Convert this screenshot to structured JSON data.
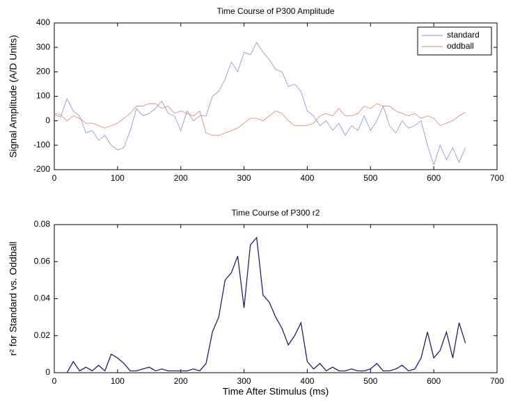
{
  "chart_data": [
    {
      "type": "line",
      "title": "Time Course of P300 Amplitude",
      "y_label": "Signal Amplitude (A/D Units)",
      "x": [
        0,
        10,
        20,
        30,
        40,
        50,
        60,
        70,
        80,
        90,
        100,
        110,
        120,
        130,
        140,
        150,
        160,
        170,
        180,
        190,
        200,
        210,
        220,
        230,
        240,
        250,
        260,
        270,
        280,
        290,
        300,
        310,
        320,
        330,
        340,
        350,
        360,
        370,
        380,
        390,
        400,
        410,
        420,
        430,
        440,
        450,
        460,
        470,
        480,
        490,
        500,
        510,
        520,
        530,
        540,
        550,
        560,
        570,
        580,
        590,
        600,
        610,
        620,
        630,
        640,
        650
      ],
      "series": [
        {
          "name": "standard",
          "color": "#8a8fd0",
          "values": [
            25,
            15,
            90,
            40,
            20,
            -50,
            -40,
            -80,
            -60,
            -100,
            -120,
            -110,
            -40,
            50,
            20,
            30,
            50,
            80,
            30,
            20,
            -40,
            40,
            0,
            20,
            20,
            100,
            120,
            170,
            240,
            200,
            280,
            270,
            320,
            280,
            250,
            210,
            200,
            140,
            150,
            120,
            40,
            20,
            -20,
            0,
            -40,
            -10,
            -60,
            -20,
            -40,
            20,
            -40,
            0,
            60,
            -20,
            -50,
            0,
            -30,
            -20,
            0,
            -100,
            -180,
            -100,
            -160,
            -110,
            -170,
            -110
          ]
        },
        {
          "name": "oddball",
          "color": "#e0826e",
          "values": [
            30,
            25,
            0,
            20,
            10,
            -10,
            -10,
            -20,
            -30,
            -20,
            -10,
            10,
            30,
            60,
            60,
            70,
            70,
            50,
            60,
            30,
            40,
            30,
            20,
            40,
            -50,
            -60,
            -60,
            -50,
            -40,
            -30,
            -10,
            10,
            10,
            0,
            20,
            40,
            30,
            0,
            -20,
            -20,
            -20,
            -10,
            20,
            30,
            20,
            50,
            20,
            20,
            30,
            60,
            50,
            70,
            60,
            60,
            40,
            30,
            20,
            30,
            10,
            20,
            10,
            -20,
            -10,
            0,
            20,
            35
          ]
        }
      ],
      "xlim": [
        0,
        700
      ],
      "xticks": [
        0,
        100,
        200,
        300,
        400,
        500,
        600,
        700
      ],
      "ylim": [
        -200,
        400
      ],
      "yticks": [
        -200,
        -100,
        0,
        100,
        200,
        300,
        400
      ],
      "legend": "upper right"
    },
    {
      "type": "line",
      "title": "Time Course of P300 r2",
      "x_label": "Time After Stimulus (ms)",
      "y_label": "r² for Standard vs. Oddball",
      "x": [
        20,
        30,
        40,
        50,
        60,
        70,
        80,
        90,
        100,
        110,
        120,
        130,
        140,
        150,
        160,
        170,
        180,
        190,
        200,
        210,
        220,
        230,
        240,
        250,
        260,
        270,
        280,
        290,
        300,
        310,
        320,
        330,
        340,
        350,
        360,
        370,
        380,
        390,
        400,
        410,
        420,
        430,
        440,
        450,
        460,
        470,
        480,
        490,
        500,
        510,
        520,
        530,
        540,
        550,
        560,
        570,
        580,
        590,
        600,
        610,
        620,
        630,
        640,
        650
      ],
      "series": [
        {
          "color": "#1f1f6e",
          "values": [
            0,
            0.006,
            0.001,
            0.003,
            0.001,
            0.004,
            0.001,
            0.01,
            0.008,
            0.005,
            0.001,
            0.001,
            0.002,
            0.003,
            0.001,
            0.002,
            0.001,
            0.001,
            0.001,
            0.001,
            0.002,
            0.001,
            0.005,
            0.022,
            0.03,
            0.05,
            0.054,
            0.063,
            0.035,
            0.069,
            0.073,
            0.042,
            0.038,
            0.03,
            0.024,
            0.015,
            0.02,
            0.027,
            0.006,
            0.002,
            0.005,
            0.001,
            0.003,
            0.001,
            0.001,
            0.002,
            0.001,
            0.001,
            0.002,
            0.005,
            0.001,
            0.001,
            0.002,
            0.004,
            0.001,
            0.002,
            0.008,
            0.022,
            0.008,
            0.012,
            0.022,
            0.008,
            0.027,
            0.016
          ]
        }
      ],
      "xlim": [
        0,
        700
      ],
      "xticks": [
        0,
        100,
        200,
        300,
        400,
        500,
        600,
        700
      ],
      "ylim": [
        0,
        0.08
      ],
      "yticks": [
        0,
        0.02,
        0.04,
        0.06,
        0.08
      ]
    }
  ]
}
